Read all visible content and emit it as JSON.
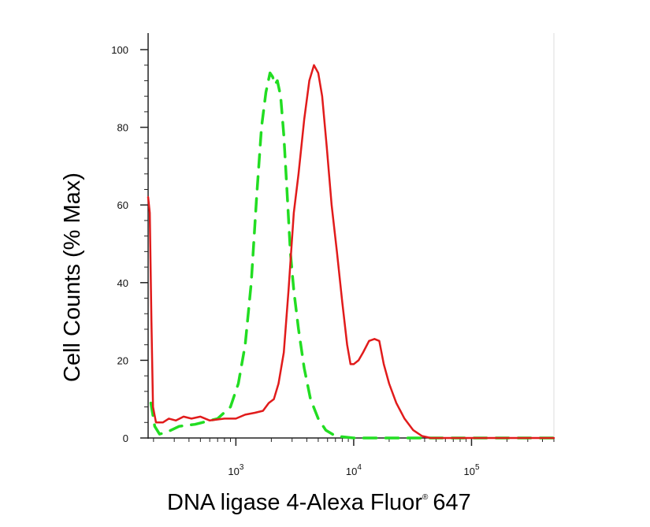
{
  "chart_data": {
    "type": "line",
    "title": "",
    "xlabel_main": "DNA ligase 4-Alexa Fluor",
    "xlabel_reg": "®",
    "xlabel_tail": "647",
    "ylabel": "Cell Counts (% Max)",
    "x_scale": "log",
    "xlim": [
      180,
      500000
    ],
    "ylim": [
      0,
      100
    ],
    "y_ticks": [
      0,
      20,
      40,
      60,
      80,
      100
    ],
    "x_ticks": [
      {
        "value": 1000,
        "base": "10",
        "exp": "3"
      },
      {
        "value": 10000,
        "base": "10",
        "exp": "4"
      },
      {
        "value": 100000,
        "base": "10",
        "exp": "5"
      }
    ],
    "grid": false,
    "series": [
      {
        "color": "#22dd22",
        "dash": "dashed",
        "points": [
          [
            190,
            9
          ],
          [
            205,
            3
          ],
          [
            225,
            1
          ],
          [
            260,
            1.5
          ],
          [
            330,
            3
          ],
          [
            450,
            3.5
          ],
          [
            700,
            5
          ],
          [
            900,
            8
          ],
          [
            1050,
            14
          ],
          [
            1200,
            24
          ],
          [
            1350,
            40
          ],
          [
            1500,
            62
          ],
          [
            1650,
            80
          ],
          [
            1800,
            89
          ],
          [
            1950,
            94
          ],
          [
            2050,
            93
          ],
          [
            2150,
            91
          ],
          [
            2250,
            92
          ],
          [
            2400,
            88
          ],
          [
            2550,
            78
          ],
          [
            2700,
            65
          ],
          [
            2900,
            48
          ],
          [
            3100,
            38
          ],
          [
            3400,
            28
          ],
          [
            3800,
            18
          ],
          [
            4300,
            10
          ],
          [
            5000,
            5
          ],
          [
            5800,
            2
          ],
          [
            7000,
            0.5
          ],
          [
            10000,
            0
          ],
          [
            30000,
            0
          ],
          [
            500000,
            0
          ]
        ]
      },
      {
        "color": "#e11b1b",
        "dash": "solid",
        "points": [
          [
            180,
            62
          ],
          [
            186,
            58
          ],
          [
            192,
            30
          ],
          [
            198,
            8
          ],
          [
            210,
            4
          ],
          [
            240,
            4
          ],
          [
            270,
            5
          ],
          [
            310,
            4.5
          ],
          [
            360,
            5.5
          ],
          [
            420,
            5
          ],
          [
            500,
            5.5
          ],
          [
            600,
            4.5
          ],
          [
            800,
            5
          ],
          [
            1000,
            5
          ],
          [
            1200,
            6
          ],
          [
            1450,
            6.5
          ],
          [
            1700,
            7
          ],
          [
            1900,
            9
          ],
          [
            2100,
            10
          ],
          [
            2300,
            14
          ],
          [
            2550,
            22
          ],
          [
            2800,
            38
          ],
          [
            3100,
            58
          ],
          [
            3400,
            68
          ],
          [
            3800,
            82
          ],
          [
            4200,
            92
          ],
          [
            4600,
            96
          ],
          [
            5000,
            94
          ],
          [
            5400,
            88
          ],
          [
            5900,
            75
          ],
          [
            6500,
            60
          ],
          [
            7200,
            48
          ],
          [
            8000,
            35
          ],
          [
            8800,
            24
          ],
          [
            9400,
            19
          ],
          [
            10000,
            19
          ],
          [
            11000,
            20
          ],
          [
            12000,
            22
          ],
          [
            13500,
            25
          ],
          [
            15000,
            25.5
          ],
          [
            16500,
            25
          ],
          [
            18000,
            19
          ],
          [
            20000,
            14
          ],
          [
            23000,
            9
          ],
          [
            27000,
            5
          ],
          [
            32000,
            2
          ],
          [
            38000,
            0.5
          ],
          [
            45000,
            0
          ],
          [
            100000,
            0
          ],
          [
            500000,
            0
          ]
        ]
      }
    ]
  }
}
